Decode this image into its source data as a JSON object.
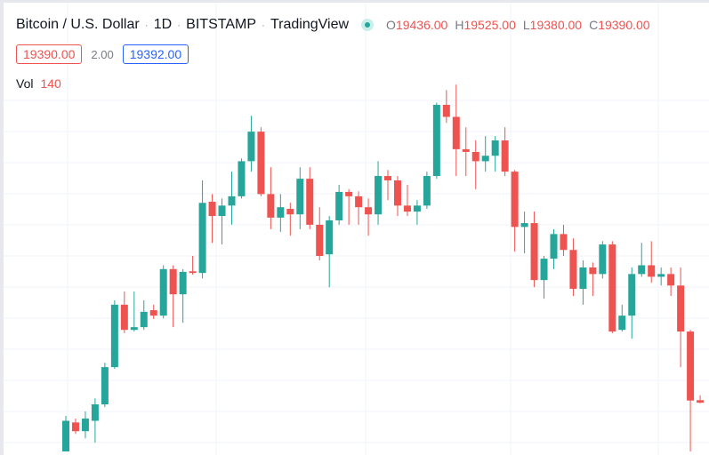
{
  "header": {
    "symbol": "Bitcoin / U.S. Dollar",
    "interval": "1D",
    "exchange": "BITSTAMP",
    "source": "TradingView",
    "ohlc": [
      {
        "key": "O",
        "value": "19436.00"
      },
      {
        "key": "H",
        "value": "19525.00"
      },
      {
        "key": "L",
        "value": "19380.00"
      },
      {
        "key": "C",
        "value": "19390.00"
      }
    ],
    "sell": "19390.00",
    "spread": "2.00",
    "buy": "19392.00",
    "volume_label": "Vol",
    "volume": "140"
  },
  "chart_data": {
    "type": "candlestick",
    "up_color": "#26a69a",
    "down_color": "#ef5350",
    "ylim": [
      18500,
      25300
    ],
    "open": [
      18500,
      19030,
      18870,
      19060,
      19360,
      20040,
      21180,
      20720,
      20770,
      21080,
      20980,
      21830,
      21370,
      21790,
      21760,
      23060,
      22800,
      22990,
      23160,
      23800,
      24340,
      23200,
      22770,
      22930,
      22830,
      23480,
      22640,
      22100,
      22720,
      23240,
      23160,
      22960,
      22830,
      23530,
      23450,
      22990,
      22880,
      22990,
      23530,
      24830,
      24610,
      24020,
      23970,
      23800,
      23900,
      24180,
      23610,
      22600,
      22670,
      21630,
      22020,
      22470,
      22180,
      21470,
      21860,
      21740,
      22280,
      20720,
      20980,
      21740,
      21900,
      21690,
      21740,
      21530,
      20690,
      19436
    ],
    "high": [
      19150,
      19100,
      19230,
      19470,
      20120,
      21260,
      21420,
      21420,
      21260,
      21180,
      21900,
      21900,
      21830,
      22070,
      23450,
      23200,
      23120,
      23610,
      23850,
      24630,
      24420,
      23690,
      23200,
      23040,
      23690,
      23690,
      22960,
      22800,
      23370,
      23290,
      23250,
      23120,
      23800,
      23640,
      23530,
      23370,
      23090,
      23610,
      24870,
      25100,
      25200,
      24420,
      24180,
      24260,
      24260,
      24420,
      23640,
      22880,
      22880,
      22070,
      22560,
      22640,
      22390,
      21990,
      21950,
      22340,
      22340,
      21180,
      21860,
      22310,
      22340,
      21860,
      21860,
      21860,
      20720,
      19525
    ],
    "low": [
      18500,
      18820,
      18740,
      18660,
      19310,
      20010,
      20660,
      20690,
      20720,
      20920,
      20930,
      20770,
      20850,
      21730,
      21660,
      22310,
      22280,
      22640,
      23120,
      23610,
      23160,
      22560,
      22510,
      22440,
      22560,
      22560,
      21990,
      21500,
      22640,
      22640,
      22640,
      22440,
      22640,
      23090,
      22800,
      22800,
      22640,
      22930,
      23480,
      24500,
      23530,
      23530,
      23290,
      23610,
      23610,
      23530,
      22150,
      22120,
      21500,
      21290,
      21830,
      22070,
      21340,
      21180,
      21340,
      21660,
      20660,
      20690,
      20560,
      21690,
      21580,
      21530,
      21340,
      20040,
      18500,
      19380
    ],
    "close": [
      19060,
      18870,
      19100,
      19360,
      20040,
      21180,
      20720,
      20770,
      21050,
      20980,
      21830,
      21370,
      21780,
      21760,
      23040,
      22800,
      22990,
      23160,
      23800,
      24340,
      23200,
      22770,
      22960,
      22830,
      23480,
      22640,
      22070,
      22720,
      23240,
      23160,
      22960,
      22830,
      23530,
      23450,
      22990,
      22880,
      22990,
      23530,
      24830,
      24610,
      24020,
      23970,
      23800,
      23900,
      24180,
      23610,
      22600,
      22670,
      21630,
      22020,
      22470,
      22180,
      21470,
      21860,
      21740,
      22280,
      20690,
      20980,
      21740,
      21900,
      21690,
      21740,
      21530,
      20690,
      19430,
      19390
    ]
  }
}
